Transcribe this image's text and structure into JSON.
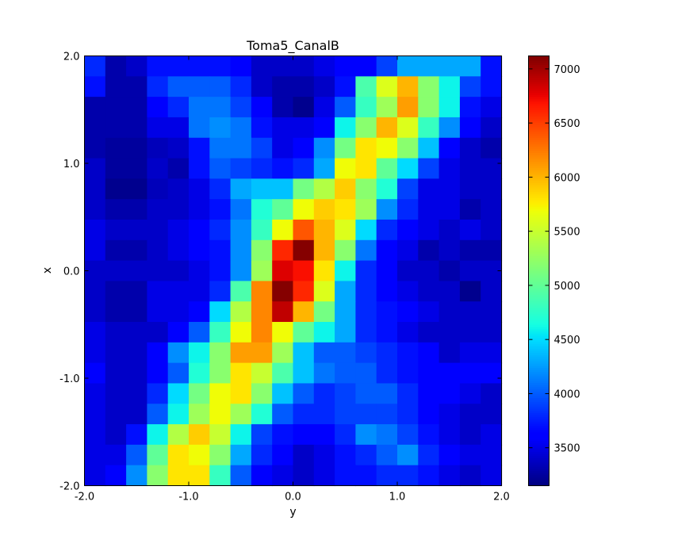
{
  "chart_data": {
    "type": "heatmap",
    "title": "Toma5_CanalB",
    "xlabel": "y",
    "ylabel": "x",
    "xlim": [
      -2.0,
      2.0
    ],
    "ylim": [
      -2.0,
      2.0
    ],
    "xticks": [
      "-2.0",
      "-1.0",
      "0.0",
      "1.0",
      "2.0"
    ],
    "yticks": [
      "-2.0",
      "-1.0",
      "0.0",
      "1.0",
      "2.0"
    ],
    "colormap": "jet",
    "vmin": 3150,
    "vmax": 7120,
    "colorbar_ticks": [
      "3500",
      "4000",
      "4500",
      "5000",
      "5500",
      "6000",
      "6500",
      "7000"
    ],
    "rows_top_to_bottom": [
      [
        3800,
        3300,
        3400,
        3700,
        3700,
        3700,
        3700,
        3600,
        3400,
        3400,
        3400,
        3500,
        3600,
        3600,
        3900,
        4300,
        4300,
        4300,
        4300,
        3700
      ],
      [
        3700,
        3300,
        3300,
        3800,
        4000,
        4000,
        4000,
        3800,
        3400,
        3300,
        3300,
        3400,
        3700,
        4900,
        5600,
        6000,
        5200,
        4600,
        3900,
        3700
      ],
      [
        3300,
        3300,
        3300,
        3600,
        3800,
        4100,
        4100,
        3900,
        3600,
        3300,
        3200,
        3500,
        4000,
        4800,
        5300,
        6100,
        5200,
        4600,
        3700,
        3500
      ],
      [
        3300,
        3300,
        3300,
        3500,
        3500,
        4100,
        4200,
        4100,
        3700,
        3500,
        3500,
        3600,
        4600,
        5200,
        6000,
        5600,
        4800,
        4200,
        3600,
        3400
      ],
      [
        3300,
        3250,
        3250,
        3350,
        3400,
        3700,
        4100,
        4100,
        3900,
        3500,
        3600,
        4200,
        5100,
        5800,
        5700,
        5200,
        4400,
        3600,
        3400,
        3300
      ],
      [
        3400,
        3250,
        3250,
        3400,
        3300,
        3700,
        4000,
        3900,
        3800,
        3700,
        3800,
        4300,
        5700,
        5800,
        5000,
        4500,
        3900,
        3500,
        3400,
        3400
      ],
      [
        3400,
        3200,
        3200,
        3350,
        3400,
        3500,
        3800,
        4300,
        4400,
        4400,
        5100,
        5400,
        5900,
        5200,
        4700,
        3900,
        3500,
        3500,
        3400,
        3400
      ],
      [
        3400,
        3300,
        3300,
        3400,
        3400,
        3500,
        3700,
        4100,
        4700,
        5000,
        5700,
        5900,
        5800,
        5300,
        4200,
        3800,
        3500,
        3500,
        3300,
        3400
      ],
      [
        3500,
        3400,
        3400,
        3400,
        3500,
        3600,
        3800,
        4200,
        4800,
        5700,
        6400,
        6000,
        5600,
        4500,
        3800,
        3600,
        3500,
        3400,
        3500,
        3400
      ],
      [
        3500,
        3300,
        3300,
        3400,
        3500,
        3600,
        3700,
        4200,
        5200,
        6600,
        7100,
        6000,
        5200,
        4100,
        3600,
        3500,
        3300,
        3400,
        3300,
        3300
      ],
      [
        3400,
        3400,
        3400,
        3400,
        3400,
        3500,
        3700,
        4200,
        5300,
        6800,
        6700,
        5800,
        4600,
        3800,
        3600,
        3400,
        3400,
        3300,
        3400,
        3400
      ],
      [
        3400,
        3300,
        3300,
        3500,
        3500,
        3500,
        3800,
        4900,
        6200,
        7100,
        6600,
        5600,
        4300,
        3800,
        3600,
        3500,
        3400,
        3400,
        3200,
        3400
      ],
      [
        3400,
        3300,
        3300,
        3500,
        3500,
        3600,
        4500,
        5400,
        6200,
        6900,
        6000,
        5100,
        4300,
        3800,
        3700,
        3600,
        3500,
        3400,
        3400,
        3400
      ],
      [
        3500,
        3400,
        3400,
        3400,
        3600,
        4000,
        4800,
        5700,
        6200,
        5700,
        5000,
        4600,
        4300,
        3800,
        3700,
        3500,
        3400,
        3400,
        3400,
        3400
      ],
      [
        3500,
        3400,
        3400,
        3600,
        4200,
        4600,
        5200,
        6100,
        6100,
        5300,
        4400,
        4000,
        4000,
        3900,
        3800,
        3700,
        3600,
        3400,
        3500,
        3500
      ],
      [
        3600,
        3400,
        3400,
        3600,
        4000,
        4700,
        5200,
        5800,
        5500,
        4900,
        4400,
        4100,
        4000,
        4000,
        3800,
        3700,
        3600,
        3600,
        3600,
        3600
      ],
      [
        3500,
        3400,
        3400,
        3800,
        4500,
        5100,
        5700,
        5800,
        5200,
        4400,
        4000,
        3800,
        3900,
        4000,
        4000,
        3800,
        3600,
        3600,
        3500,
        3400
      ],
      [
        3500,
        3400,
        3400,
        4000,
        4600,
        5300,
        5700,
        5300,
        4700,
        4000,
        3800,
        3800,
        3900,
        3900,
        3900,
        3800,
        3600,
        3500,
        3400,
        3400
      ],
      [
        3500,
        3400,
        3700,
        4600,
        5400,
        5900,
        5500,
        4600,
        3900,
        3700,
        3600,
        3600,
        3800,
        4200,
        4100,
        3900,
        3700,
        3500,
        3400,
        3500
      ],
      [
        3500,
        3500,
        4000,
        5000,
        5800,
        5700,
        5200,
        4300,
        3800,
        3600,
        3400,
        3500,
        3700,
        3800,
        4000,
        4200,
        3800,
        3600,
        3500,
        3500
      ],
      [
        3500,
        3600,
        4200,
        5200,
        5800,
        5800,
        4800,
        4000,
        3600,
        3500,
        3400,
        3500,
        3700,
        3700,
        3800,
        3800,
        3700,
        3500,
        3400,
        3500
      ]
    ]
  }
}
